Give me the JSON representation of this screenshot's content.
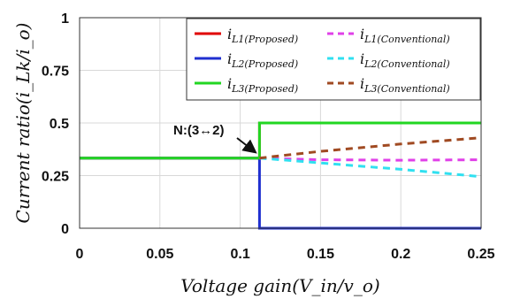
{
  "chart_data": {
    "type": "line",
    "title": "",
    "xlabel": "Voltage gain(V_in/v_o)",
    "ylabel": "Current ratio(i_Lk/i_o)",
    "xlim": [
      0,
      0.25
    ],
    "ylim": [
      0,
      1
    ],
    "x_ticks": [
      "0",
      "0.05",
      "0.1",
      "0.15",
      "0.2",
      "0.25"
    ],
    "y_ticks": [
      "0",
      "0.25",
      "0.5",
      "0.75",
      "1"
    ],
    "grid": true,
    "legend_position": "top-right",
    "annotation": {
      "text": "N:(3↔2)",
      "x": 0.112,
      "y": 0.333
    },
    "series": [
      {
        "name": "i_L1(Proposed)",
        "label_main": "i",
        "label_sub": "L1(Proposed)",
        "color": "#e00000",
        "dash": "solid",
        "points": [
          [
            0,
            0.333
          ],
          [
            0.112,
            0.333
          ],
          [
            0.112,
            0.5
          ],
          [
            0.25,
            0.5
          ]
        ]
      },
      {
        "name": "i_L2(Proposed)",
        "label_main": "i",
        "label_sub": "L2(Proposed)",
        "color": "#1f2fd0",
        "dash": "solid",
        "points": [
          [
            0,
            0.333
          ],
          [
            0.112,
            0.333
          ],
          [
            0.112,
            0
          ],
          [
            0.25,
            0
          ]
        ]
      },
      {
        "name": "i_L3(Proposed)",
        "label_main": "i",
        "label_sub": "L3(Proposed)",
        "color": "#22d622",
        "dash": "solid",
        "points": [
          [
            0,
            0.333
          ],
          [
            0.112,
            0.333
          ],
          [
            0.112,
            0.5
          ],
          [
            0.25,
            0.5
          ]
        ]
      },
      {
        "name": "i_L1(Conventional)",
        "label_main": "i",
        "label_sub": "L1(Conventional)",
        "color": "#e040e8",
        "dash": "dashed",
        "points": [
          [
            0.112,
            0.333
          ],
          [
            0.15,
            0.325
          ],
          [
            0.2,
            0.323
          ],
          [
            0.25,
            0.325
          ]
        ]
      },
      {
        "name": "i_L2(Conventional)",
        "label_main": "i",
        "label_sub": "L2(Conventional)",
        "color": "#30e0f0",
        "dash": "dashed",
        "points": [
          [
            0.112,
            0.333
          ],
          [
            0.15,
            0.31
          ],
          [
            0.2,
            0.28
          ],
          [
            0.25,
            0.245
          ]
        ]
      },
      {
        "name": "i_L3(Conventional)",
        "label_main": "i",
        "label_sub": "L3(Conventional)",
        "color": "#a04a22",
        "dash": "dashed",
        "points": [
          [
            0.112,
            0.333
          ],
          [
            0.15,
            0.365
          ],
          [
            0.2,
            0.4
          ],
          [
            0.25,
            0.43
          ]
        ]
      }
    ]
  }
}
